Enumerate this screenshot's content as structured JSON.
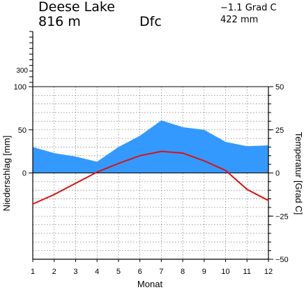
{
  "header": {
    "station": "Deese Lake",
    "elevation": "816  m",
    "climate_class": "Dfc",
    "mean_temp": "−1.1 Grad C",
    "annual_precip": "422 mm"
  },
  "chart_data": {
    "type": "area",
    "title": "",
    "xlabel": "Monat",
    "ylabel_left": "Niederschlag [mm]",
    "ylabel_right": "Temperatur [Grad C]",
    "categories": [
      "1",
      "2",
      "3",
      "4",
      "5",
      "6",
      "7",
      "8",
      "9",
      "10",
      "11",
      "12"
    ],
    "left_ticks": [
      "100",
      "50",
      "0"
    ],
    "left_upper_ticks": [
      "300"
    ],
    "right_ticks": [
      "50",
      "25",
      "0",
      "−25",
      "−50"
    ],
    "precip_range": [
      -100,
      100
    ],
    "temp_range": [
      -50,
      50
    ],
    "grid": true,
    "series": [
      {
        "key": "precipitation",
        "unit": "mm",
        "color": "#3399ff",
        "values": [
          30,
          23,
          19,
          13,
          30,
          43,
          61,
          53,
          50,
          36,
          31,
          32
        ]
      },
      {
        "key": "temperature",
        "unit": "Grad C",
        "color": "#dd1111",
        "values": [
          -18,
          -12.5,
          -6,
          0.5,
          5.5,
          10,
          12.5,
          11.5,
          7,
          1.5,
          -9.5,
          -16
        ]
      }
    ]
  }
}
